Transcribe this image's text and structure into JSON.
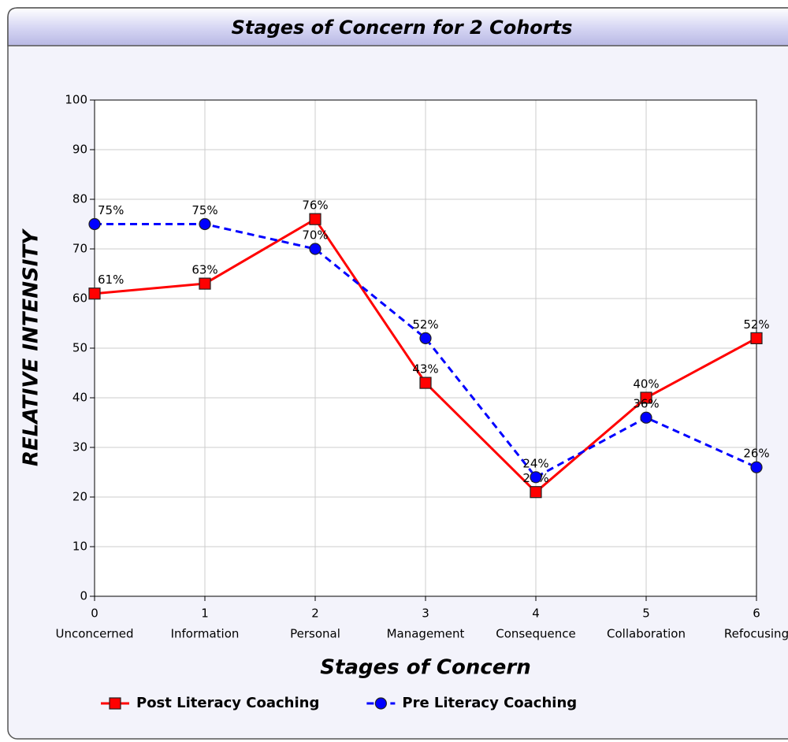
{
  "chart_data": {
    "type": "line",
    "title": "Stages of Concern for 2 Cohorts",
    "x_label": "Stages of Concern",
    "y_label": "RELATIVE INTENSITY",
    "x": [
      0,
      1,
      2,
      3,
      4,
      5,
      6
    ],
    "categories": [
      "Unconcerned",
      "Information",
      "Personal",
      "Management",
      "Consequence",
      "Collaboration",
      "Refocusing"
    ],
    "xlim": [
      0,
      6
    ],
    "xticks": [
      0,
      1,
      2,
      3,
      4,
      5,
      6
    ],
    "ylim": [
      0,
      100
    ],
    "yticks": [
      0,
      10,
      20,
      30,
      40,
      50,
      60,
      70,
      80,
      90,
      100
    ],
    "grid": true,
    "legend": "bottom",
    "series": [
      {
        "name": "Post Literacy Coaching",
        "color": "#ff0000",
        "marker": "square",
        "dash": false,
        "values": [
          61,
          63,
          76,
          43,
          21,
          40,
          52
        ],
        "value_labels": [
          "61%",
          "63%",
          "76%",
          "43%",
          "21%",
          "40%",
          "52%"
        ]
      },
      {
        "name": "Pre Literacy Coaching",
        "color": "#0000ff",
        "marker": "circle",
        "dash": true,
        "values": [
          75,
          75,
          70,
          52,
          24,
          36,
          26
        ],
        "value_labels": [
          "75%",
          "75%",
          "70%",
          "52%",
          "24%",
          "36%",
          "26%"
        ]
      }
    ]
  }
}
